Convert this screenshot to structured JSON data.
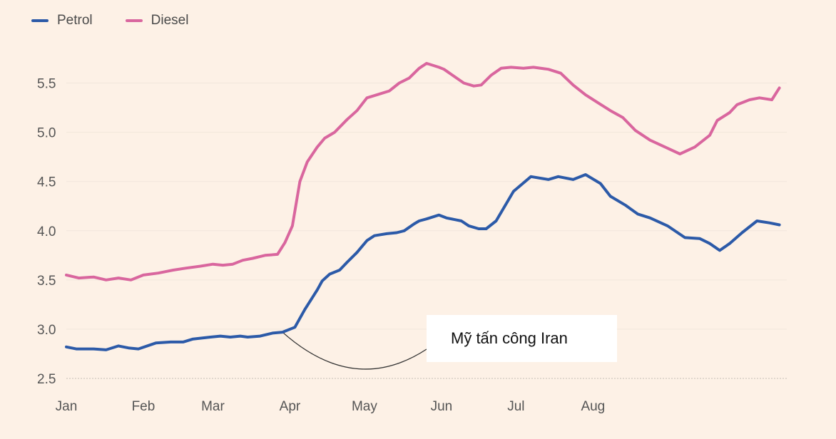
{
  "chart_data": {
    "type": "line",
    "title": "",
    "xlabel": "",
    "ylabel": "",
    "ylim": [
      2.5,
      5.75
    ],
    "yticks": [
      "2.5",
      "3.0",
      "3.5",
      "4.0",
      "4.5",
      "5.0",
      "5.5"
    ],
    "xticks": [
      "Jan",
      "Feb",
      "Mar",
      "Apr",
      "May",
      "Jun",
      "Jul",
      "Aug"
    ],
    "x_unit": "day_of_year",
    "grid": true,
    "legend_position": "top-left",
    "annotation": "Mỹ tấn công Iran",
    "series": [
      {
        "name": "Petrol",
        "color": "#2c5aa8",
        "x": [
          1,
          5,
          12,
          17,
          22,
          26,
          30,
          37,
          43,
          48,
          52,
          59,
          63,
          67,
          71,
          74,
          79,
          84,
          88,
          93,
          97,
          102,
          104,
          107,
          111,
          114,
          118,
          122,
          125,
          130,
          134,
          137,
          141,
          143,
          146,
          151,
          154,
          160,
          163,
          167,
          170,
          174,
          181,
          188,
          195,
          199,
          205,
          210,
          216,
          220,
          226,
          231,
          236,
          243,
          250,
          256,
          260,
          264,
          268,
          273,
          279,
          284,
          288
        ],
        "y": [
          2.82,
          2.8,
          2.8,
          2.79,
          2.83,
          2.81,
          2.8,
          2.86,
          2.87,
          2.87,
          2.9,
          2.92,
          2.93,
          2.92,
          2.93,
          2.92,
          2.93,
          2.96,
          2.97,
          3.02,
          3.2,
          3.4,
          3.49,
          3.56,
          3.6,
          3.68,
          3.78,
          3.9,
          3.95,
          3.97,
          3.98,
          4.0,
          4.07,
          4.1,
          4.12,
          4.16,
          4.13,
          4.1,
          4.05,
          4.02,
          4.02,
          4.1,
          4.4,
          4.55,
          4.52,
          4.55,
          4.52,
          4.57,
          4.48,
          4.35,
          4.26,
          4.17,
          4.13,
          4.05,
          3.93,
          3.92,
          3.87,
          3.8,
          3.87,
          3.98,
          4.1,
          4.08,
          4.06
        ]
      },
      {
        "name": "Diesel",
        "color": "#d9669e",
        "x": [
          1,
          6,
          12,
          17,
          22,
          27,
          32,
          38,
          44,
          49,
          55,
          60,
          64,
          68,
          72,
          76,
          81,
          86,
          89,
          92,
          95,
          98,
          102,
          105,
          109,
          114,
          118,
          122,
          126,
          131,
          135,
          139,
          143,
          146,
          151,
          153,
          157,
          161,
          165,
          168,
          172,
          176,
          180,
          185,
          189,
          195,
          200,
          205,
          210,
          215,
          220,
          225,
          230,
          236,
          242,
          248,
          254,
          260,
          263,
          268,
          271,
          276,
          280,
          285,
          288
        ],
        "y": [
          3.55,
          3.52,
          3.53,
          3.5,
          3.52,
          3.5,
          3.55,
          3.57,
          3.6,
          3.62,
          3.64,
          3.66,
          3.65,
          3.66,
          3.7,
          3.72,
          3.75,
          3.76,
          3.88,
          4.05,
          4.5,
          4.7,
          4.85,
          4.94,
          5.0,
          5.13,
          5.22,
          5.35,
          5.38,
          5.42,
          5.5,
          5.55,
          5.65,
          5.7,
          5.66,
          5.64,
          5.57,
          5.5,
          5.47,
          5.48,
          5.58,
          5.65,
          5.66,
          5.65,
          5.66,
          5.64,
          5.6,
          5.48,
          5.38,
          5.3,
          5.22,
          5.15,
          5.02,
          4.92,
          4.85,
          4.78,
          4.85,
          4.97,
          5.12,
          5.2,
          5.28,
          5.33,
          5.35,
          5.33,
          5.45
        ]
      }
    ]
  }
}
